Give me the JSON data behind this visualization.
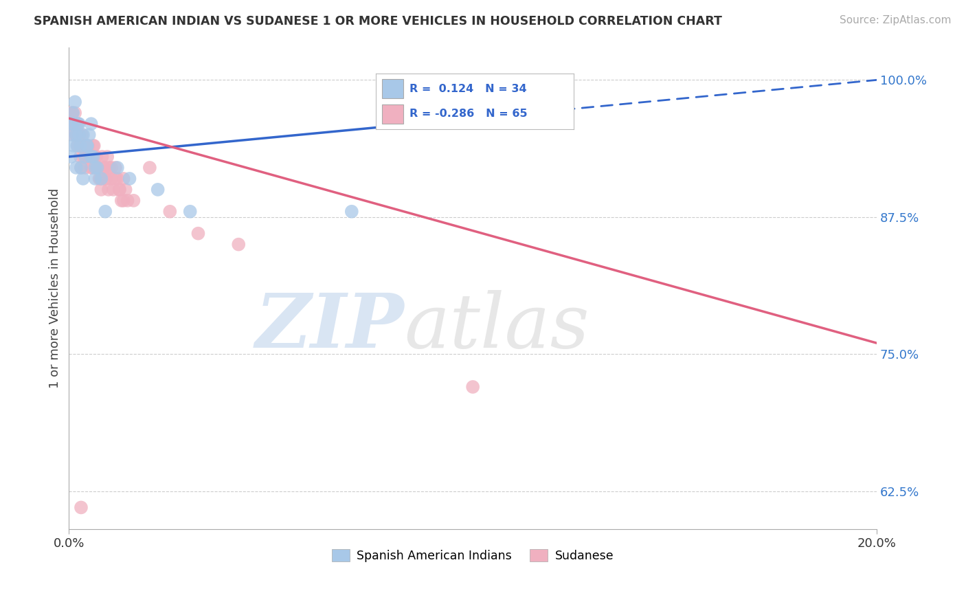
{
  "title": "SPANISH AMERICAN INDIAN VS SUDANESE 1 OR MORE VEHICLES IN HOUSEHOLD CORRELATION CHART",
  "source": "Source: ZipAtlas.com",
  "ylabel": "1 or more Vehicles in Household",
  "xmin": 0.0,
  "xmax": 20.0,
  "ymin": 59.0,
  "ymax": 103.0,
  "yticks": [
    62.5,
    75.0,
    87.5,
    100.0
  ],
  "xticks": [
    0.0,
    20.0
  ],
  "blue_R": 0.124,
  "blue_N": 34,
  "pink_R": -0.286,
  "pink_N": 65,
  "blue_color": "#a8c8e8",
  "pink_color": "#f0b0c0",
  "blue_line_color": "#3366cc",
  "pink_line_color": "#e06080",
  "blue_line_y0": 93.0,
  "blue_line_y1": 100.0,
  "pink_line_y0": 96.5,
  "pink_line_y1": 76.0,
  "blue_dash_start_x": 8.0,
  "blue_scatter_x": [
    0.05,
    0.08,
    0.1,
    0.12,
    0.15,
    0.18,
    0.2,
    0.22,
    0.25,
    0.28,
    0.3,
    0.35,
    0.4,
    0.45,
    0.5,
    0.55,
    0.6,
    0.65,
    0.7,
    0.08,
    0.12,
    0.18,
    0.25,
    0.35,
    0.45,
    0.55,
    0.65,
    0.8,
    0.9,
    1.2,
    1.5,
    2.2,
    3.0,
    7.0
  ],
  "blue_scatter_y": [
    93,
    95,
    97,
    96,
    98,
    95,
    94,
    96,
    95,
    94,
    92,
    91,
    93,
    94,
    95,
    96,
    93,
    91,
    92,
    96,
    94,
    92,
    96,
    95,
    94,
    93,
    92,
    91,
    88,
    92,
    91,
    90,
    88,
    88
  ],
  "pink_scatter_x": [
    0.05,
    0.07,
    0.1,
    0.12,
    0.15,
    0.18,
    0.2,
    0.22,
    0.25,
    0.28,
    0.3,
    0.35,
    0.38,
    0.4,
    0.45,
    0.5,
    0.55,
    0.6,
    0.65,
    0.7,
    0.75,
    0.8,
    0.85,
    0.9,
    0.95,
    1.0,
    1.05,
    1.1,
    1.15,
    1.2,
    1.25,
    1.3,
    1.35,
    1.4,
    1.45,
    0.08,
    0.12,
    0.18,
    0.22,
    0.28,
    0.32,
    0.38,
    0.42,
    0.48,
    0.52,
    0.58,
    0.62,
    0.68,
    0.72,
    0.78,
    0.82,
    0.88,
    0.92,
    0.98,
    1.05,
    1.15,
    1.25,
    1.35,
    1.6,
    2.0,
    3.2,
    4.2,
    10.0,
    2.5,
    0.3
  ],
  "pink_scatter_y": [
    96,
    97,
    96,
    95,
    97,
    96,
    95,
    94,
    95,
    93,
    92,
    93,
    94,
    92,
    94,
    93,
    92,
    94,
    93,
    92,
    91,
    90,
    92,
    91,
    93,
    92,
    91,
    90,
    92,
    91,
    90,
    89,
    91,
    90,
    89,
    97,
    96,
    95,
    96,
    94,
    95,
    94,
    93,
    94,
    93,
    92,
    94,
    93,
    92,
    91,
    93,
    92,
    91,
    90,
    92,
    91,
    90,
    89,
    89,
    92,
    86,
    85,
    72,
    88,
    61
  ]
}
